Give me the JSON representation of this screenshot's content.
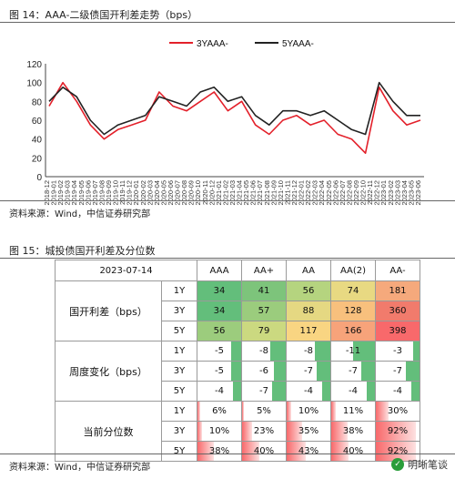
{
  "fig14": {
    "title": "图 14：AAA-二级债国开利差走势（bps）",
    "source": "资料来源：Wind，中信证券研究部"
  },
  "chart_data": {
    "type": "line",
    "legend": [
      "3YAAA-",
      "5YAAA-"
    ],
    "colors": [
      "#e3202a",
      "#222222"
    ],
    "ylim": [
      0,
      120
    ],
    "yticks": [
      0,
      20,
      40,
      60,
      80,
      100,
      120
    ],
    "x": [
      "2018-12",
      "2019-02",
      "2019-04",
      "2019-06",
      "2019-08",
      "2019-10",
      "2019-12",
      "2020-02",
      "2020-04",
      "2020-06",
      "2020-08",
      "2020-10",
      "2020-12",
      "2021-02",
      "2021-04",
      "2021-06",
      "2021-08",
      "2021-10",
      "2021-12",
      "2022-02",
      "2022-04",
      "2022-06",
      "2022-08",
      "2022-10",
      "2022-12",
      "2023-02",
      "2023-04",
      "2023-06"
    ],
    "xtick_labels": [
      "2018-12",
      "2019-01",
      "2019-02",
      "2019-03",
      "2019-04",
      "2019-05",
      "2019-06",
      "2019-07",
      "2019-08",
      "2019-09",
      "2019-10",
      "2019-11",
      "2019-12",
      "2020-01",
      "2020-02",
      "2020-03",
      "2020-04",
      "2020-05",
      "2020-06",
      "2020-07",
      "2020-08",
      "2020-09",
      "2020-10",
      "2020-11",
      "2020-12",
      "2021-01",
      "2021-02",
      "2021-03",
      "2021-04",
      "2021-05",
      "2021-06",
      "2021-07",
      "2021-08",
      "2021-09",
      "2021-10",
      "2021-11",
      "2021-12",
      "2022-01",
      "2022-02",
      "2022-03",
      "2022-04",
      "2022-05",
      "2022-06",
      "2022-07",
      "2022-08",
      "2022-09",
      "2022-10",
      "2022-11",
      "2022-12",
      "2023-01",
      "2023-02",
      "2023-03",
      "2023-04",
      "2023-05",
      "2023-06"
    ],
    "series": [
      {
        "name": "3YAAA-",
        "values": [
          75,
          100,
          80,
          55,
          40,
          50,
          55,
          60,
          90,
          75,
          70,
          80,
          90,
          70,
          80,
          55,
          45,
          60,
          65,
          55,
          60,
          45,
          40,
          25,
          95,
          70,
          55,
          60
        ]
      },
      {
        "name": "5YAAA-",
        "values": [
          80,
          95,
          85,
          60,
          45,
          55,
          60,
          65,
          85,
          80,
          75,
          90,
          95,
          80,
          85,
          65,
          55,
          70,
          70,
          65,
          70,
          60,
          50,
          45,
          100,
          80,
          65,
          65
        ]
      }
    ]
  },
  "fig15": {
    "title": "图 15：城投债国开利差及分位数",
    "date": "2023-07-14",
    "columns": [
      "AAA",
      "AA+",
      "AA",
      "AA(2)",
      "AA-"
    ],
    "groups": [
      {
        "name": "国开利差（bps）",
        "rows": [
          {
            "tenor": "1Y",
            "values": [
              "34",
              "41",
              "56",
              "74",
              "181"
            ]
          },
          {
            "tenor": "3Y",
            "values": [
              "34",
              "57",
              "88",
              "128",
              "360"
            ]
          },
          {
            "tenor": "5Y",
            "values": [
              "56",
              "79",
              "117",
              "166",
              "398"
            ]
          }
        ]
      },
      {
        "name": "周度变化（bps）",
        "rows": [
          {
            "tenor": "1Y",
            "values": [
              "-5",
              "-8",
              "-8",
              "-11",
              "-3"
            ]
          },
          {
            "tenor": "3Y",
            "values": [
              "-5",
              "-6",
              "-7",
              "-7",
              "-7"
            ]
          },
          {
            "tenor": "5Y",
            "values": [
              "-4",
              "-7",
              "-4",
              "-4",
              "-4"
            ]
          }
        ]
      },
      {
        "name": "当前分位数",
        "rows": [
          {
            "tenor": "1Y",
            "values": [
              "6%",
              "5%",
              "10%",
              "11%",
              "30%"
            ]
          },
          {
            "tenor": "3Y",
            "values": [
              "10%",
              "23%",
              "35%",
              "38%",
              "92%"
            ]
          },
          {
            "tenor": "5Y",
            "values": [
              "38%",
              "40%",
              "43%",
              "40%",
              "92%"
            ]
          }
        ]
      }
    ],
    "spread_colors": [
      [
        "#63be7b",
        "#7dc47b",
        "#b5d47f",
        "#e8d982",
        "#f5a97c"
      ],
      [
        "#63be7b",
        "#9bcc7d",
        "#e5d882",
        "#f8c07d",
        "#f17b6c"
      ],
      [
        "#9ccc7d",
        "#cbd980",
        "#f9d582",
        "#f7a37a",
        "#f8696b"
      ]
    ],
    "source": "资料来源：Wind，中信证券研究部"
  },
  "watermark": "明晰笔谈"
}
